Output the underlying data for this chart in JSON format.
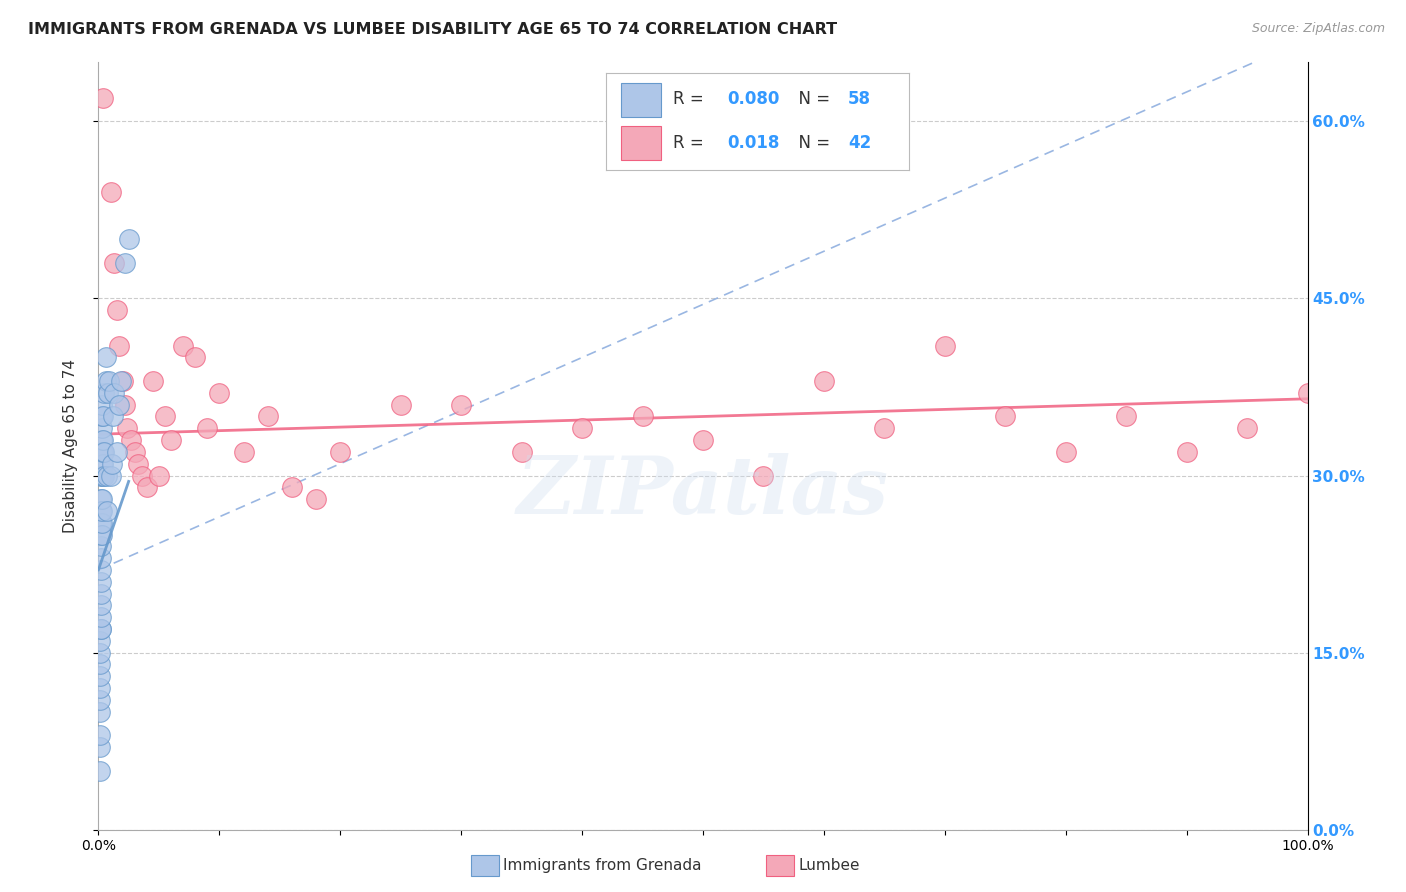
{
  "title": "IMMIGRANTS FROM GRENADA VS LUMBEE DISABILITY AGE 65 TO 74 CORRELATION CHART",
  "source": "Source: ZipAtlas.com",
  "ylabel": "Disability Age 65 to 74",
  "xlim": [
    0.0,
    1.0
  ],
  "ylim": [
    0.0,
    0.65
  ],
  "yticks": [
    0.0,
    0.15,
    0.3,
    0.45,
    0.6
  ],
  "ytick_labels": [
    "0.0%",
    "15.0%",
    "30.0%",
    "45.0%",
    "60.0%"
  ],
  "xtick_labels": [
    "0.0%",
    "",
    "",
    "",
    "",
    "",
    "",
    "",
    "",
    "",
    "100.0%"
  ],
  "grenada_R": 0.08,
  "grenada_N": 58,
  "lumbee_R": 0.018,
  "lumbee_N": 42,
  "grenada_color": "#aec6e8",
  "lumbee_color": "#f4a8b8",
  "grenada_edge_color": "#6699cc",
  "lumbee_edge_color": "#f06080",
  "grenada_trend_color": "#88aadd",
  "lumbee_trend_color": "#f06080",
  "watermark": "ZIPatlas",
  "background_color": "#ffffff",
  "grid_color": "#cccccc",
  "title_color": "#222222",
  "axis_label_color": "#333333",
  "right_ytick_color": "#3399ff",
  "legend_color": "#3399ff",
  "grenada_x": [
    0.001,
    0.001,
    0.001,
    0.001,
    0.001,
    0.001,
    0.001,
    0.001,
    0.001,
    0.001,
    0.002,
    0.002,
    0.002,
    0.002,
    0.002,
    0.002,
    0.002,
    0.002,
    0.002,
    0.002,
    0.002,
    0.002,
    0.002,
    0.002,
    0.003,
    0.003,
    0.003,
    0.003,
    0.003,
    0.003,
    0.003,
    0.003,
    0.003,
    0.003,
    0.003,
    0.004,
    0.004,
    0.004,
    0.004,
    0.004,
    0.005,
    0.005,
    0.005,
    0.006,
    0.006,
    0.007,
    0.007,
    0.008,
    0.009,
    0.01,
    0.011,
    0.012,
    0.013,
    0.015,
    0.017,
    0.019,
    0.022,
    0.025
  ],
  "grenada_y": [
    0.05,
    0.07,
    0.08,
    0.1,
    0.11,
    0.12,
    0.13,
    0.14,
    0.15,
    0.16,
    0.17,
    0.17,
    0.18,
    0.19,
    0.2,
    0.21,
    0.22,
    0.23,
    0.24,
    0.25,
    0.26,
    0.27,
    0.28,
    0.3,
    0.25,
    0.26,
    0.27,
    0.28,
    0.3,
    0.31,
    0.32,
    0.33,
    0.34,
    0.35,
    0.36,
    0.3,
    0.31,
    0.32,
    0.33,
    0.35,
    0.3,
    0.32,
    0.37,
    0.38,
    0.4,
    0.27,
    0.3,
    0.37,
    0.38,
    0.3,
    0.31,
    0.35,
    0.37,
    0.32,
    0.36,
    0.38,
    0.48,
    0.5
  ],
  "lumbee_x": [
    0.004,
    0.01,
    0.013,
    0.015,
    0.017,
    0.02,
    0.022,
    0.024,
    0.027,
    0.03,
    0.033,
    0.036,
    0.04,
    0.045,
    0.05,
    0.055,
    0.06,
    0.07,
    0.08,
    0.09,
    0.1,
    0.12,
    0.14,
    0.16,
    0.18,
    0.2,
    0.25,
    0.3,
    0.35,
    0.4,
    0.45,
    0.5,
    0.55,
    0.6,
    0.65,
    0.7,
    0.75,
    0.8,
    0.85,
    0.9,
    0.95,
    1.0
  ],
  "lumbee_y": [
    0.62,
    0.54,
    0.48,
    0.44,
    0.41,
    0.38,
    0.36,
    0.34,
    0.33,
    0.32,
    0.31,
    0.3,
    0.29,
    0.38,
    0.3,
    0.35,
    0.33,
    0.41,
    0.4,
    0.34,
    0.37,
    0.32,
    0.35,
    0.29,
    0.28,
    0.32,
    0.36,
    0.36,
    0.32,
    0.34,
    0.35,
    0.33,
    0.3,
    0.38,
    0.34,
    0.41,
    0.35,
    0.32,
    0.35,
    0.32,
    0.34,
    0.37
  ]
}
